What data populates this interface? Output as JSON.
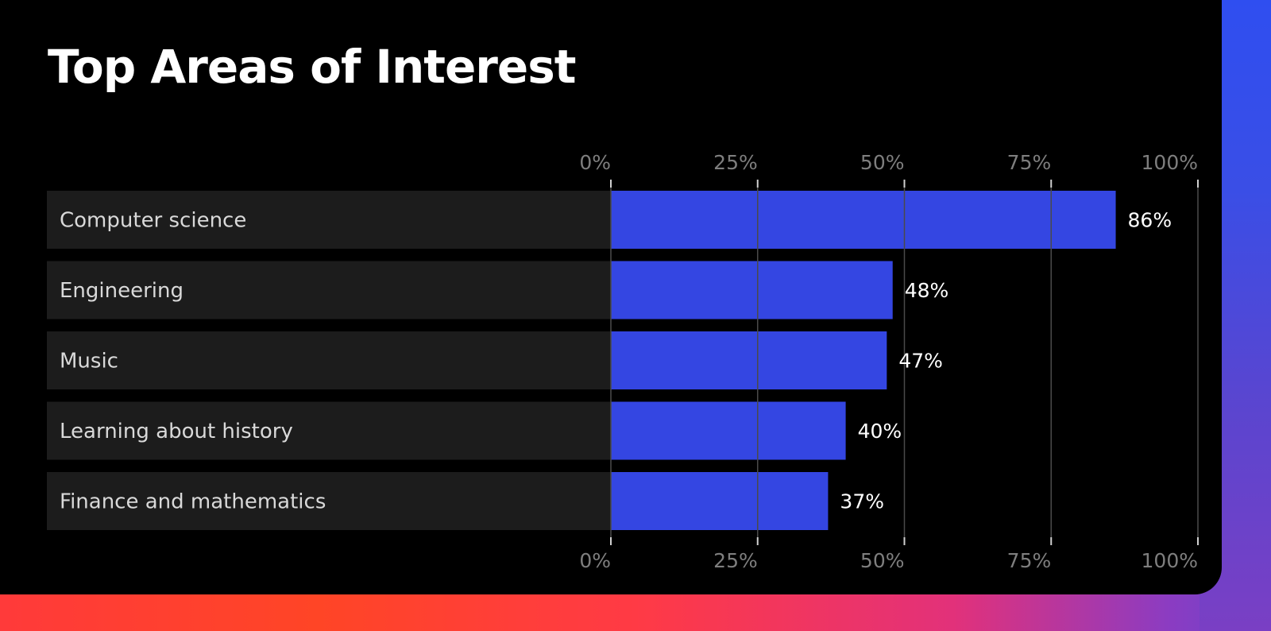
{
  "chart_data": {
    "type": "bar",
    "orientation": "horizontal",
    "title": "Top Areas of Interest",
    "categories": [
      "Computer science",
      "Engineering",
      "Music",
      "Learning about history",
      "Finance and mathematics"
    ],
    "values": [
      86,
      48,
      47,
      40,
      37
    ],
    "value_labels": [
      "86%",
      "48%",
      "47%",
      "40%",
      "37%"
    ],
    "xlim": [
      0,
      100
    ],
    "x_ticks": [
      0,
      25,
      50,
      75,
      100
    ],
    "x_tick_labels": [
      "0%",
      "25%",
      "50%",
      "75%",
      "100%"
    ],
    "xlabel": "",
    "ylabel": "",
    "grid": true,
    "ticks_position": "top and bottom"
  },
  "colors": {
    "bar": "#3446e2",
    "row_background": "#1c1c1c",
    "panel_background": "#000000",
    "gridline": "#4a4a4a",
    "title_text": "#ffffff",
    "tick_text": "#7e7e7e",
    "category_text": "#d9d9d9",
    "value_text": "#ffffff"
  }
}
